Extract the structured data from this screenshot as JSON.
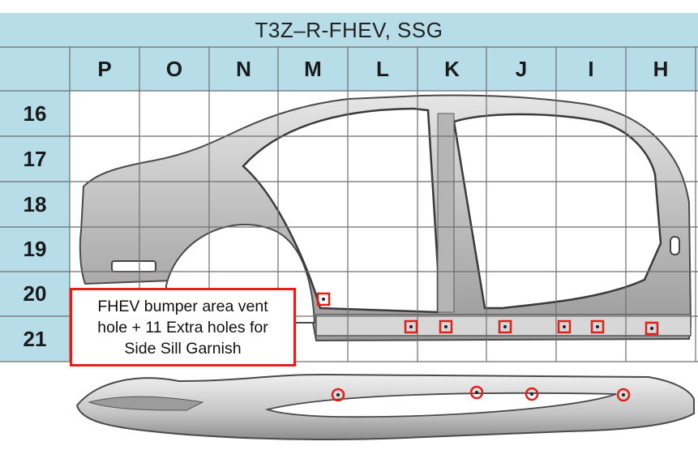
{
  "title": "T3Z–R-FHEV, SSG",
  "columns": [
    "P",
    "O",
    "N",
    "M",
    "L",
    "K",
    "J",
    "I",
    "H"
  ],
  "rows": [
    "16",
    "17",
    "18",
    "19",
    "20",
    "21"
  ],
  "callout": {
    "lines": [
      "FHEV bumper area vent",
      "hole + 11 Extra holes for",
      "Side Sill Garnish"
    ]
  },
  "colors": {
    "header_fill": "#b7dde8",
    "grid_line": "#6e6e6e",
    "marker": "#e0201a",
    "panel_fill": "#c9c9c9",
    "panel_edge": "#4a4a4a"
  },
  "icons": [
    "hole-marker-square-icon",
    "hole-marker-circle-icon"
  ]
}
